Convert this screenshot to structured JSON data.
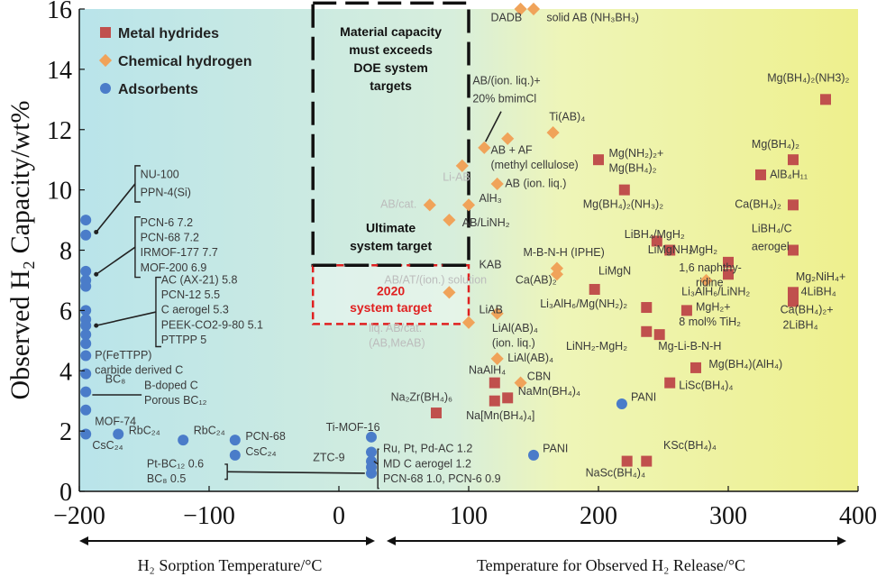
{
  "chart_data": {
    "type": "scatter",
    "xlim": [
      -200,
      400
    ],
    "ylim": [
      0,
      16
    ],
    "xticks": [
      "−200",
      "−100",
      "0",
      "100",
      "200",
      "300",
      "400"
    ],
    "yticks": [
      "0",
      "2",
      "4",
      "6",
      "8",
      "10",
      "12",
      "14",
      "16"
    ],
    "ylabel": "Observed H₂ Capacity/wt%",
    "xlabel_left": "H₂ Sorption Temperature/°C",
    "xlabel_right": "Temperature for Observed H₂ Release/°C",
    "legend": [
      {
        "name": "Metal hydrides",
        "marker": "square",
        "color": "#c0504d"
      },
      {
        "name": "Chemical hydrogen",
        "marker": "diamond",
        "color": "#f0a35a"
      },
      {
        "name": "Adsorbents",
        "marker": "circle",
        "color": "#4a7cc9"
      }
    ],
    "annotations": {
      "doe_box": "Material capacity must exceeds DOE system targets",
      "ultimate": "Ultimate system target",
      "target2020": "2020 system target"
    },
    "series": [
      {
        "name": "Metal hydrides",
        "points": [
          {
            "x": 375,
            "y": 13.0,
            "label": "Mg(BH₄)₂(NH3)₂"
          },
          {
            "x": 350,
            "y": 11.0,
            "label": "Mg(BH₄)₂"
          },
          {
            "x": 325,
            "y": 10.5,
            "label": "AlB₄H₁₁"
          },
          {
            "x": 350,
            "y": 9.5,
            "label": "Ca(BH₄)₂"
          },
          {
            "x": 350,
            "y": 8.0,
            "label": "LiBH₄/C aerogel"
          },
          {
            "x": 300,
            "y": 7.6,
            "label": "MgH₂"
          },
          {
            "x": 300,
            "y": 7.2,
            "label": "1,6 naphthy-ridine"
          },
          {
            "x": 350,
            "y": 6.6,
            "label": "Mg₂NiH₄+4LiBH₄"
          },
          {
            "x": 350,
            "y": 6.3,
            "label": "Ca(BH₄)₂+2LiBH₄"
          },
          {
            "x": 200,
            "y": 11.0,
            "label": "Mg(NH₂)₂+Mg(BH₄)₂"
          },
          {
            "x": 220,
            "y": 10.0,
            "label": "Mg(BH₄)₂(NH₃)₂"
          },
          {
            "x": 245,
            "y": 8.3,
            "label": "LiBH₄/MgH₂"
          },
          {
            "x": 255,
            "y": 8.0,
            "label": "LiMgNH₂"
          },
          {
            "x": 197,
            "y": 6.7,
            "label": "LiMgN"
          },
          {
            "x": 237,
            "y": 6.1,
            "label": "Li₃AlH₆/Mg(NH₂)₂"
          },
          {
            "x": 268,
            "y": 6.0,
            "label": "MgH₂+8 mol% TiH₂"
          },
          {
            "x": 237,
            "y": 5.3,
            "label": "LiNH₂-MgH₂"
          },
          {
            "x": 247,
            "y": 5.2,
            "label": "Mg-Li-B-N-H"
          },
          {
            "x": 275,
            "y": 4.1,
            "label": "Mg(BH₄)(AlH₄)"
          },
          {
            "x": 255,
            "y": 3.6,
            "label": "LiSc(BH₄)₄"
          },
          {
            "x": 120,
            "y": 3.6,
            "label": "NaAlH₄"
          },
          {
            "x": 120,
            "y": 3.0,
            "label": "NaMn(BH₄)₄"
          },
          {
            "x": 130,
            "y": 3.1,
            "label": "NaMn(BH₄)₄"
          },
          {
            "x": 75,
            "y": 2.6,
            "label": "Na₂Zr(BH₄)₆"
          },
          {
            "x": 237,
            "y": 1.0,
            "label": "KSc(BH₄)₄"
          },
          {
            "x": 222,
            "y": 1.0,
            "label": "NaSc(BH₄)₄"
          }
        ]
      },
      {
        "name": "Chemical hydrogen",
        "points": [
          {
            "x": 140,
            "y": 16.0,
            "label": "DADB"
          },
          {
            "x": 150,
            "y": 16.0,
            "label": "solid AB (NH₃BH₃)"
          },
          {
            "x": 165,
            "y": 11.9,
            "label": "Ti(AB)₄"
          },
          {
            "x": 112,
            "y": 11.4,
            "label": "AB/(ion. liq.)+ 20% bmimCl"
          },
          {
            "x": 130,
            "y": 11.7,
            "label": "AB + AF (methyl cellulose)"
          },
          {
            "x": 95,
            "y": 10.8,
            "label": "Li-AB"
          },
          {
            "x": 122,
            "y": 10.2,
            "label": "AB (ion. liq.)"
          },
          {
            "x": 100,
            "y": 9.5,
            "label": "AlH₃"
          },
          {
            "x": 70,
            "y": 9.5,
            "label": "AB/cat."
          },
          {
            "x": 85,
            "y": 9.0,
            "label": "AB/LiNH₂"
          },
          {
            "x": 168,
            "y": 7.4,
            "label": "M-B-N-H (IPHE)"
          },
          {
            "x": 168,
            "y": 7.2,
            "label": "Ca(AB)₂"
          },
          {
            "x": 283,
            "y": 7.0,
            "label": "1,6 naphthy-ridine"
          },
          {
            "x": 85,
            "y": 6.6,
            "label": "AB/AT/(ion.) solution"
          },
          {
            "x": 122,
            "y": 5.9,
            "label": "LiAB"
          },
          {
            "x": 100,
            "y": 5.6,
            "label": "liq. AB/cat. (AB,MeAB)"
          },
          {
            "x": 122,
            "y": 4.4,
            "label": "LiAl(AB)₄ (ion. liq.)"
          },
          {
            "x": 140,
            "y": 3.6,
            "label": "CBN"
          }
        ]
      },
      {
        "name": "Adsorbents",
        "points": [
          {
            "x": -195,
            "y": 9.0,
            "label": "NU-100"
          },
          {
            "x": -195,
            "y": 8.5,
            "label": "PPN-4(Si)"
          },
          {
            "x": -195,
            "y": 7.3,
            "label": "PCN-6 7.2"
          },
          {
            "x": -195,
            "y": 7.0,
            "label": "PCN-68 7.2"
          },
          {
            "x": -195,
            "y": 6.8,
            "label": "IRMOF-177 7.7"
          },
          {
            "x": -195,
            "y": 6.0,
            "label": "AC (AX-21) 5.8"
          },
          {
            "x": -195,
            "y": 5.7,
            "label": "PCN-12 5.5"
          },
          {
            "x": -195,
            "y": 5.5,
            "label": "C aerogel 5.3"
          },
          {
            "x": -195,
            "y": 5.2,
            "label": "PEEK-CO2-9-80 5.1"
          },
          {
            "x": -195,
            "y": 4.9,
            "label": "PTTPP 5"
          },
          {
            "x": -195,
            "y": 4.5,
            "label": "P(FeTTPP)"
          },
          {
            "x": -195,
            "y": 3.9,
            "label": "BC₈"
          },
          {
            "x": -195,
            "y": 3.3,
            "label": "B-doped C"
          },
          {
            "x": -195,
            "y": 2.7,
            "label": "MOF-74"
          },
          {
            "x": -195,
            "y": 1.9,
            "label": "CsC₂₄"
          },
          {
            "x": -170,
            "y": 1.9,
            "label": "RbC₂₄"
          },
          {
            "x": -120,
            "y": 1.7,
            "label": "RbC₂₄"
          },
          {
            "x": -80,
            "y": 1.7,
            "label": "PCN-68"
          },
          {
            "x": -80,
            "y": 1.2,
            "label": "CsC₂₄"
          },
          {
            "x": 25,
            "y": 1.8,
            "label": "Ti-MOF-16"
          },
          {
            "x": 25,
            "y": 1.3,
            "label": "ZTC-9"
          },
          {
            "x": 25,
            "y": 1.0,
            "label": "Ru, Pt, Pd-AC 1.2"
          },
          {
            "x": 25,
            "y": 0.8,
            "label": "MD C aerogel 1.2"
          },
          {
            "x": 25,
            "y": 0.6,
            "label": "PCN-68 1.0, PCN-6 0.9"
          },
          {
            "x": 150,
            "y": 1.2,
            "label": "PANI"
          },
          {
            "x": 218,
            "y": 2.9,
            "label": "PANI"
          }
        ]
      }
    ],
    "text_labels": [
      {
        "text": "DADB",
        "x": 117,
        "y": 15.6
      },
      {
        "text": "solid AB (NH₃BH₃)",
        "x": 160,
        "y": 15.6
      },
      {
        "text": "Material capacity",
        "x": 30,
        "y": 15.2
      },
      {
        "text": "must exceeds",
        "x": 30,
        "y": 14.6
      },
      {
        "text": "DOE system",
        "x": 30,
        "y": 14.0
      },
      {
        "text": "targets",
        "x": 30,
        "y": 13.4
      },
      {
        "text": "Mg(BH₄)₂(NH3)₂",
        "x": 330,
        "y": 13.6
      },
      {
        "text": "AB/(ion. liq.)+",
        "x": 103,
        "y": 13.5
      },
      {
        "text": "20% bmimCl",
        "x": 103,
        "y": 12.9
      },
      {
        "text": "Ti(AB)₄",
        "x": 162,
        "y": 12.3
      },
      {
        "text": "AB + AF",
        "x": 117,
        "y": 11.2
      },
      {
        "text": "(methyl cellulose)",
        "x": 117,
        "y": 10.7
      },
      {
        "text": "Mg(NH₂)₂+",
        "x": 208,
        "y": 11.1
      },
      {
        "text": "Mg(BH₄)₂",
        "x": 208,
        "y": 10.6
      },
      {
        "text": "Mg(BH₄)₂",
        "x": 318,
        "y": 11.4
      },
      {
        "text": "AlB₄H₁₁",
        "x": 332,
        "y": 10.4
      },
      {
        "text": "Li-AB",
        "x": 80,
        "y": 10.3
      },
      {
        "text": "AB (ion. liq.)",
        "x": 128,
        "y": 10.1
      },
      {
        "text": "Mg(BH₄)₂(NH₃)₂",
        "x": 188,
        "y": 9.4
      },
      {
        "text": "Ca(BH₄)₂",
        "x": 305,
        "y": 9.4
      },
      {
        "text": "AB/cat.",
        "x": 32,
        "y": 9.4
      },
      {
        "text": "AlH₃",
        "x": 108,
        "y": 9.6
      },
      {
        "text": "AB/LiNH₂",
        "x": 95,
        "y": 8.8
      },
      {
        "text": "LiBH₄/C",
        "x": 318,
        "y": 8.6
      },
      {
        "text": "aerogel",
        "x": 318,
        "y": 8.0
      },
      {
        "text": "LiBH₄/MgH₂",
        "x": 220,
        "y": 8.4
      },
      {
        "text": "LiMgNH₂",
        "x": 238,
        "y": 7.9
      },
      {
        "text": "M-B-N-H (IPHE)",
        "x": 142,
        "y": 7.8
      },
      {
        "text": "MgH₂",
        "x": 270,
        "y": 7.9
      },
      {
        "text": "1,6 naphthy-",
        "x": 262,
        "y": 7.3
      },
      {
        "text": "ridine",
        "x": 275,
        "y": 6.8
      },
      {
        "text": "KAB",
        "x": 108,
        "y": 7.4
      },
      {
        "text": "Ca(AB)₂",
        "x": 136,
        "y": 6.9
      },
      {
        "text": "LiMgN",
        "x": 200,
        "y": 7.2
      },
      {
        "text": "Mg₂NiH₄+",
        "x": 352,
        "y": 7.0
      },
      {
        "text": "4LiBH₄",
        "x": 356,
        "y": 6.5
      },
      {
        "text": "Li₃AlH₆/LiNH₂",
        "x": 264,
        "y": 6.5
      },
      {
        "text": "AB/AT/(ion.) solution",
        "x": 35,
        "y": 6.9
      },
      {
        "text": "Li₃AlH₆/Mg(NH₂)₂",
        "x": 155,
        "y": 6.1
      },
      {
        "text": "LiAB",
        "x": 108,
        "y": 5.9
      },
      {
        "text": "MgH₂+",
        "x": 275,
        "y": 6.0
      },
      {
        "text": "8 mol% TiH₂",
        "x": 262,
        "y": 5.5
      },
      {
        "text": "Ca(BH₄)₂+",
        "x": 340,
        "y": 5.9
      },
      {
        "text": "2LiBH₄",
        "x": 342,
        "y": 5.4
      },
      {
        "text": "LiAl(AB)₄",
        "x": 118,
        "y": 5.3
      },
      {
        "text": "(ion. liq.)",
        "x": 118,
        "y": 4.8
      },
      {
        "text": "liq. AB/cat.",
        "x": 23,
        "y": 5.3
      },
      {
        "text": "(AB,MeAB)",
        "x": 23,
        "y": 4.8
      },
      {
        "text": "LiNH₂-MgH₂",
        "x": 175,
        "y": 4.7
      },
      {
        "text": "Mg-Li-B-N-H",
        "x": 246,
        "y": 4.7
      },
      {
        "text": "LiAl(AB)₄",
        "x": 130,
        "y": 4.3
      },
      {
        "text": "Mg(BH₄)(AlH₄)",
        "x": 285,
        "y": 4.1
      },
      {
        "text": "NaAlH₄",
        "x": 100,
        "y": 3.9
      },
      {
        "text": "CBN",
        "x": 145,
        "y": 3.7
      },
      {
        "text": "NaMn(BH₄)₄",
        "x": 138,
        "y": 3.2
      },
      {
        "text": "LiSc(BH₄)₄",
        "x": 262,
        "y": 3.4
      },
      {
        "text": "Na₂Zr(BH₄)₆",
        "x": 40,
        "y": 3.0
      },
      {
        "text": "Na[Mn(BH₄)₄]",
        "x": 98,
        "y": 2.4
      },
      {
        "text": "PANI",
        "x": 225,
        "y": 3.0
      },
      {
        "text": "KSc(BH₄)₄",
        "x": 250,
        "y": 1.4
      },
      {
        "text": "PANI",
        "x": 157,
        "y": 1.3
      },
      {
        "text": "NaSc(BH₄)₄",
        "x": 190,
        "y": 0.5
      },
      {
        "text": "NU-100",
        "x": -153,
        "y": 10.4
      },
      {
        "text": "PPN-4(Si)",
        "x": -153,
        "y": 9.8
      },
      {
        "text": "PCN-6 7.2",
        "x": -153,
        "y": 8.8
      },
      {
        "text": "PCN-68 7.2",
        "x": -153,
        "y": 8.3
      },
      {
        "text": "IRMOF-177 7.7",
        "x": -153,
        "y": 7.8
      },
      {
        "text": "MOF-200 6.9",
        "x": -153,
        "y": 7.3
      },
      {
        "text": "AC (AX-21) 5.8",
        "x": -137,
        "y": 6.9
      },
      {
        "text": "PCN-12 5.5",
        "x": -137,
        "y": 6.4
      },
      {
        "text": "C aerogel 5.3",
        "x": -137,
        "y": 5.9
      },
      {
        "text": "PEEK-CO2-9-80 5.1",
        "x": -137,
        "y": 5.4
      },
      {
        "text": "PTTPP 5",
        "x": -137,
        "y": 4.9
      },
      {
        "text": "P(FeTTPP)",
        "x": -188,
        "y": 4.4
      },
      {
        "text": "carbide derived C",
        "x": -188,
        "y": 3.9
      },
      {
        "text": "BC₈",
        "x": -180,
        "y": 3.6
      },
      {
        "text": "B-doped C",
        "x": -150,
        "y": 3.4
      },
      {
        "text": "Porous BC₁₂",
        "x": -150,
        "y": 2.9
      },
      {
        "text": "MOF-74",
        "x": -188,
        "y": 2.2
      },
      {
        "text": "CsC₂₄",
        "x": -190,
        "y": 1.4
      },
      {
        "text": "RbC₂₄",
        "x": -162,
        "y": 1.9
      },
      {
        "text": "RbC₂₄",
        "x": -112,
        "y": 1.9
      },
      {
        "text": "PCN-68",
        "x": -72,
        "y": 1.7
      },
      {
        "text": "CsC₂₄",
        "x": -72,
        "y": 1.2
      },
      {
        "text": "Ti-MOF-16",
        "x": -10,
        "y": 2.0
      },
      {
        "text": "ZTC-9",
        "x": -20,
        "y": 1.0
      },
      {
        "text": "Pt-BC₁₂ 0.6",
        "x": -148,
        "y": 0.8
      },
      {
        "text": "BC₈ 0.5",
        "x": -148,
        "y": 0.3
      },
      {
        "text": "Ru, Pt, Pd-AC 1.2",
        "x": 34,
        "y": 1.3
      },
      {
        "text": "MD C aerogel 1.2",
        "x": 34,
        "y": 0.8
      },
      {
        "text": "PCN-68 1.0, PCN-6 0.9",
        "x": 34,
        "y": 0.3
      }
    ]
  }
}
